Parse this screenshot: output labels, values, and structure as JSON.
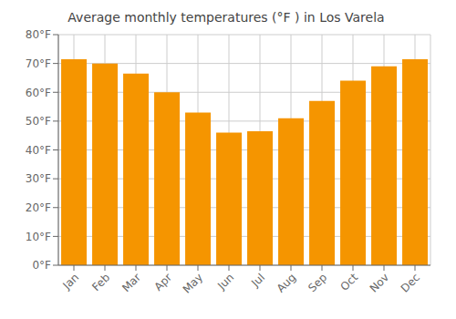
{
  "chart_data": {
    "type": "bar",
    "title": "Average monthly temperatures (°F ) in Los Varela",
    "categories": [
      "Jan",
      "Feb",
      "Mar",
      "Apr",
      "May",
      "Jun",
      "Jul",
      "Aug",
      "Sep",
      "Oct",
      "Nov",
      "Dec"
    ],
    "values": [
      71.5,
      70.0,
      66.5,
      60.0,
      53.0,
      46.0,
      46.5,
      51.0,
      57.0,
      64.0,
      69.0,
      71.5
    ],
    "color": "#F59500",
    "ylim": [
      0,
      80
    ],
    "yticks": [
      {
        "value": 0,
        "label": "0°F"
      },
      {
        "value": 10,
        "label": "10°F"
      },
      {
        "value": 20,
        "label": "20°F"
      },
      {
        "value": 30,
        "label": "30°F"
      },
      {
        "value": 40,
        "label": "40°F"
      },
      {
        "value": 50,
        "label": "50°F"
      },
      {
        "value": 60,
        "label": "60°F"
      },
      {
        "value": 70,
        "label": "70°F"
      },
      {
        "value": 80,
        "label": "80°F"
      }
    ],
    "grid": true
  }
}
